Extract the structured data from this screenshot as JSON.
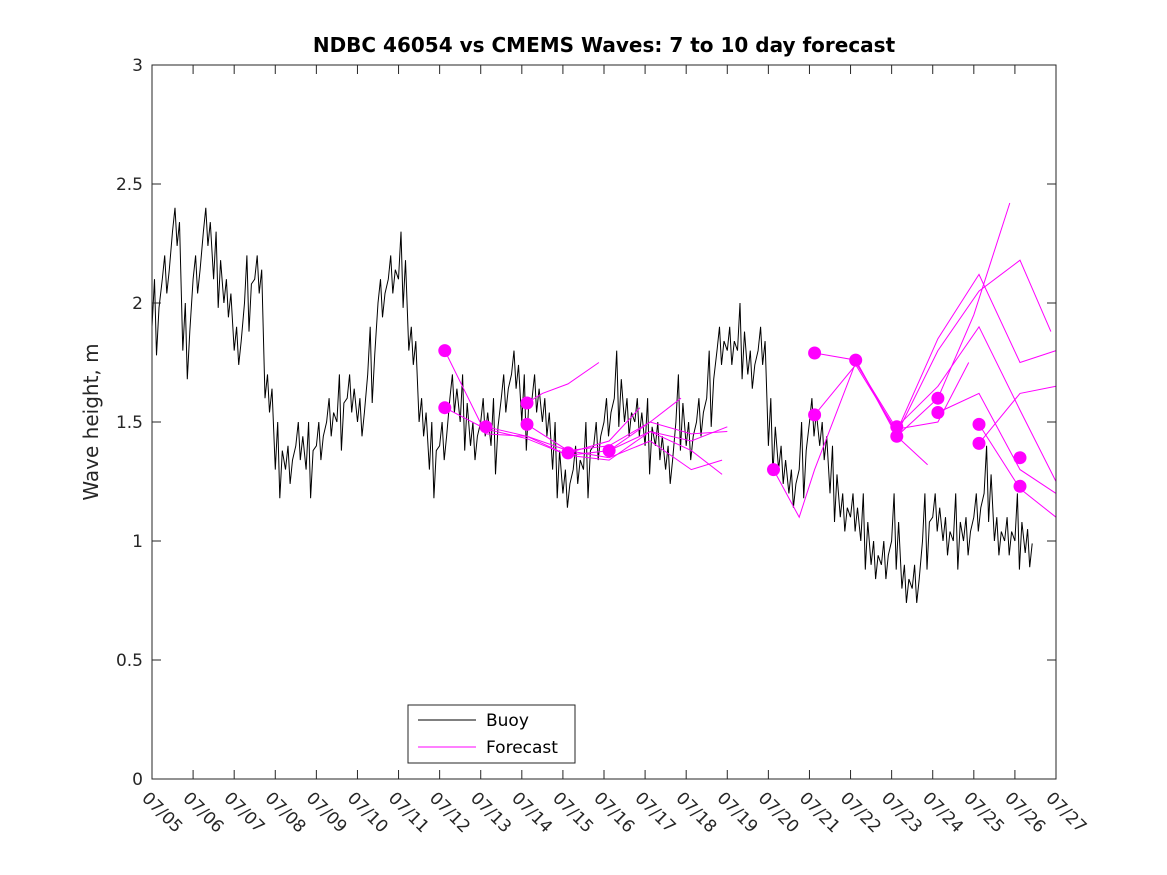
{
  "chart_data": {
    "type": "line",
    "title": "NDBC 46054 vs CMEMS Waves: 7 to 10 day forecast",
    "xlabel": "",
    "ylabel": "Wave height, m",
    "xlim": [
      "07/05",
      "07/27"
    ],
    "ylim": [
      0,
      3
    ],
    "x_ticks": [
      "07/05",
      "07/06",
      "07/07",
      "07/08",
      "07/09",
      "07/10",
      "07/11",
      "07/12",
      "07/13",
      "07/14",
      "07/15",
      "07/16",
      "07/17",
      "07/18",
      "07/19",
      "07/20",
      "07/21",
      "07/22",
      "07/23",
      "07/24",
      "07/25",
      "07/26",
      "07/27"
    ],
    "y_ticks": [
      "0",
      "0.5",
      "1",
      "1.5",
      "2",
      "2.5",
      "3"
    ],
    "grid": false,
    "legend": {
      "location": "bottom-center",
      "entries": [
        "Buoy",
        "Forecast"
      ]
    },
    "colors": {
      "buoy": "#000000",
      "forecast": "#ff00ff"
    },
    "buoy": {
      "name": "Buoy",
      "segments": [
        {
          "x": [
            "07/05 00:00",
            "07/05 06:00",
            "07/05 12:00",
            "07/05 18:00",
            "07/06 00:00",
            "07/06 06:00",
            "07/06 12:00",
            "07/06 18:00",
            "07/07 00:00",
            "07/07 06:00",
            "07/07 12:00",
            "07/07 18:00",
            "07/08 00:00",
            "07/08 06:00",
            "07/08 12:00",
            "07/08 18:00",
            "07/09 00:00",
            "07/09 06:00",
            "07/09 12:00",
            "07/09 18:00",
            "07/10 00:00",
            "07/10 06:00",
            "07/10 12:00",
            "07/10 18:00",
            "07/11 00:00",
            "07/11 06:00",
            "07/11 12:00",
            "07/11 18:00",
            "07/12 00:00",
            "07/12 06:00",
            "07/12 12:00",
            "07/12 18:00",
            "07/13 00:00",
            "07/13 06:00",
            "07/13 12:00",
            "07/13 18:00",
            "07/14 00:00",
            "07/14 06:00",
            "07/14 12:00",
            "07/14 18:00",
            "07/15 00:00",
            "07/15 06:00",
            "07/15 12:00",
            "07/15 18:00",
            "07/16 00:00",
            "07/16 06:00",
            "07/16 12:00",
            "07/16 18:00",
            "07/17 00:00",
            "07/17 06:00",
            "07/17 12:00",
            "07/17 18:00",
            "07/18 00:00",
            "07/18 06:00",
            "07/18 12:00",
            "07/18 18:00",
            "07/19 00:00",
            "07/19 06:00",
            "07/19 12:00",
            "07/19 18:00",
            "07/20 00:00",
            "07/20 06:00",
            "07/20 12:00",
            "07/20 18:00",
            "07/21 00:00",
            "07/21 06:00",
            "07/21 12:00",
            "07/21 18:00",
            "07/22 00:00",
            "07/22 06:00",
            "07/22 12:00",
            "07/22 18:00",
            "07/23 00:00",
            "07/23 06:00",
            "07/23 12:00",
            "07/23 18:00",
            "07/24 00:00",
            "07/24 06:00",
            "07/24 12:00",
            "07/24 18:00",
            "07/25 00:00",
            "07/25 06:00",
            "07/25 12:00",
            "07/25 18:00",
            "07/26 00:00",
            "07/26 06:00"
          ],
          "y": [
            1.9,
            2.1,
            2.3,
            1.8,
            2.1,
            2.3,
            2.1,
            2.0,
            1.8,
            2.0,
            2.1,
            1.6,
            1.3,
            1.3,
            1.4,
            1.3,
            1.4,
            1.5,
            1.5,
            1.6,
            1.5,
            1.7,
            2.0,
            2.1,
            2.1,
            1.8,
            1.5,
            1.3,
            1.4,
            1.6,
            1.5,
            1.4,
            1.5,
            1.4,
            1.6,
            1.7,
            1.5,
            1.6,
            1.5,
            1.3,
            1.2,
            1.3,
            1.3,
            1.4,
            1.5,
            1.6,
            1.5,
            1.5,
            1.4,
            1.4,
            1.3,
            1.5,
            1.4,
            1.5,
            1.6,
            1.8,
            1.8,
            1.8,
            1.7,
            1.8,
            1.4,
            1.3,
            1.2,
            1.3,
            1.5,
            1.4,
            1.2,
            1.1,
            1.1,
            1.0,
            0.9,
            0.9,
            1.0,
            0.8,
            0.8,
            1.0,
            1.1,
            1.0,
            1.0,
            1.0,
            1.1,
            1.2,
            1.0,
            1.0,
            1.0,
            0.95
          ]
        }
      ]
    },
    "forecast_series": [
      {
        "x": [
          "07/12 03:00",
          "07/13 03:00",
          "07/14 03:00",
          "07/15 03:00",
          "07/16 03:00",
          "07/17 03:00",
          "07/18 03:00",
          "07/19 00:00"
        ],
        "y": [
          1.8,
          1.45,
          1.44,
          1.38,
          1.4,
          1.5,
          1.45,
          1.46
        ]
      },
      {
        "x": [
          "07/12 03:00",
          "07/13 03:00",
          "07/14 03:00",
          "07/15 03:00",
          "07/16 03:00",
          "07/17 03:00",
          "07/18 03:00",
          "07/19 00:00"
        ],
        "y": [
          1.56,
          1.47,
          1.43,
          1.36,
          1.34,
          1.46,
          1.42,
          1.48
        ]
      },
      {
        "x": [
          "07/13 03:00",
          "07/14 03:00",
          "07/15 03:00",
          "07/16 03:00",
          "07/17 03:00",
          "07/18 03:00",
          "07/18 21:00"
        ],
        "y": [
          1.48,
          1.44,
          1.36,
          1.38,
          1.46,
          1.38,
          1.28
        ]
      },
      {
        "x": [
          "07/14 03:00",
          "07/14 12:00",
          "07/15 03:00",
          "07/15 21:00"
        ],
        "y": [
          1.58,
          1.62,
          1.66,
          1.75
        ]
      },
      {
        "x": [
          "07/14 03:00",
          "07/15 03:00",
          "07/16 03:00",
          "07/17 03:00",
          "07/18 03:00",
          "07/18 21:00"
        ],
        "y": [
          1.49,
          1.38,
          1.35,
          1.42,
          1.3,
          1.34
        ]
      },
      {
        "x": [
          "07/15 03:00",
          "07/16 03:00",
          "07/16 21:00"
        ],
        "y": [
          1.37,
          1.42,
          1.56
        ]
      },
      {
        "x": [
          "07/16 03:00",
          "07/17 03:00",
          "07/17 21:00"
        ],
        "y": [
          1.38,
          1.5,
          1.6
        ]
      },
      {
        "x": [
          "07/20 03:00",
          "07/20 18:00",
          "07/21 03:00",
          "07/22 03:00",
          "07/23 03:00",
          "07/24 03:00",
          "07/24 21:00"
        ],
        "y": [
          1.3,
          1.1,
          1.3,
          1.75,
          1.47,
          1.5,
          1.75
        ]
      },
      {
        "x": [
          "07/21 03:00",
          "07/22 03:00",
          "07/23 03:00",
          "07/24 03:00",
          "07/25 03:00",
          "07/26 03:00",
          "07/26 21:00"
        ],
        "y": [
          1.79,
          1.76,
          1.45,
          1.8,
          2.05,
          2.18,
          1.88
        ]
      },
      {
        "x": [
          "07/21 03:00",
          "07/22 03:00",
          "07/23 03:00",
          "07/24 03:00",
          "07/25 03:00",
          "07/26 03:00",
          "07/27 00:00"
        ],
        "y": [
          1.53,
          1.74,
          1.46,
          1.85,
          2.12,
          1.75,
          1.8
        ]
      },
      {
        "x": [
          "07/22 03:00",
          "07/23 03:00",
          "07/24 03:00",
          "07/25 00:00",
          "07/25 21:00"
        ],
        "y": [
          1.76,
          1.44,
          1.6,
          1.95,
          2.42
        ]
      },
      {
        "x": [
          "07/23 03:00",
          "07/24 03:00",
          "07/25 03:00",
          "07/26 03:00",
          "07/27 00:00"
        ],
        "y": [
          1.48,
          1.65,
          1.9,
          1.55,
          1.25
        ]
      },
      {
        "x": [
          "07/23 03:00",
          "07/23 21:00"
        ],
        "y": [
          1.44,
          1.32
        ]
      },
      {
        "x": [
          "07/24 03:00",
          "07/25 03:00",
          "07/26 03:00",
          "07/27 00:00"
        ],
        "y": [
          1.54,
          1.62,
          1.3,
          1.2
        ]
      },
      {
        "x": [
          "07/25 03:00",
          "07/26 03:00",
          "07/27 00:00"
        ],
        "y": [
          1.49,
          1.22,
          1.1
        ]
      },
      {
        "x": [
          "07/25 03:00",
          "07/26 03:00",
          "07/27 00:00"
        ],
        "y": [
          1.41,
          1.62,
          1.65
        ]
      }
    ],
    "forecast_markers": {
      "x": [
        "07/12 03:00",
        "07/12 03:00",
        "07/13 03:00",
        "07/14 03:00",
        "07/14 03:00",
        "07/15 03:00",
        "07/16 03:00",
        "07/20 03:00",
        "07/21 03:00",
        "07/21 03:00",
        "07/22 03:00",
        "07/23 03:00",
        "07/23 03:00",
        "07/24 03:00",
        "07/24 03:00",
        "07/25 03:00",
        "07/25 03:00",
        "07/26 03:00",
        "07/26 03:00"
      ],
      "y": [
        1.8,
        1.56,
        1.48,
        1.58,
        1.49,
        1.37,
        1.38,
        1.3,
        1.79,
        1.53,
        1.76,
        1.48,
        1.44,
        1.6,
        1.54,
        1.49,
        1.41,
        1.35,
        1.23
      ]
    }
  }
}
